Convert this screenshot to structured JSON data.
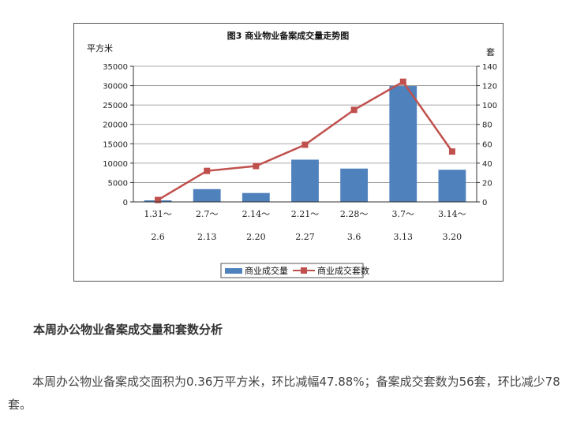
{
  "chart_data": {
    "type": "bar+line",
    "title": "图3   商业物业备案成交量走势图",
    "left_axis_label": "平方米",
    "right_axis_label": "套",
    "left_ylim": [
      0,
      35000
    ],
    "left_ticks": [
      "35000",
      "30000",
      "25000",
      "20000",
      "15000",
      "10000",
      "5000",
      "0"
    ],
    "right_ylim": [
      0,
      140
    ],
    "right_ticks": [
      "140",
      "120",
      "100",
      "80",
      "60",
      "40",
      "20",
      "0"
    ],
    "categories": [
      {
        "top": "1.31～",
        "bottom": "2.6"
      },
      {
        "top": "2.7～",
        "bottom": "2.13"
      },
      {
        "top": "2.14～",
        "bottom": "2.20"
      },
      {
        "top": "2.21～",
        "bottom": "2.27"
      },
      {
        "top": "2.28～",
        "bottom": "3.6"
      },
      {
        "top": "3.7～",
        "bottom": "3.13"
      },
      {
        "top": "3.14～",
        "bottom": "3.20"
      }
    ],
    "series": [
      {
        "name": "商业成交量",
        "type": "bar",
        "axis": "left",
        "color": "#4f81bd",
        "values": [
          400,
          3300,
          2300,
          10900,
          8600,
          29900,
          8300
        ]
      },
      {
        "name": "商业成交套数",
        "type": "line",
        "axis": "right",
        "color": "#c0504d",
        "values": [
          2,
          32,
          37,
          59,
          95,
          124,
          52
        ]
      }
    ],
    "grid": true,
    "legend_position": "bottom-center"
  },
  "article": {
    "heading": "本周办公物业备案成交量和套数分析",
    "paragraph": "本周办公物业备案成交面积为0.36万平方米，环比减幅47.88%；备案成交套数为56套，环比减少78套。"
  }
}
